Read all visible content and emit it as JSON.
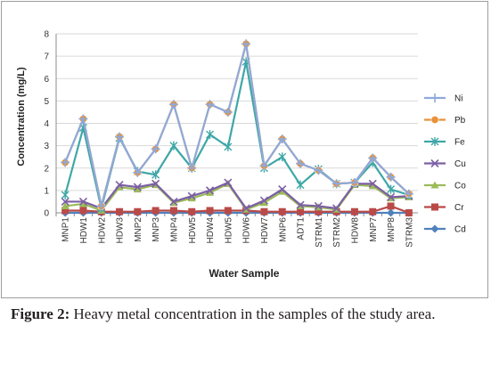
{
  "chart_data": {
    "type": "line",
    "xlabel": "Water Sample",
    "ylabel": "Concentration (mg/L)",
    "ylim": [
      0,
      8
    ],
    "yticks": [
      "0",
      "1",
      "2",
      "3",
      "4",
      "5",
      "6",
      "7",
      "8"
    ],
    "grid": true,
    "legend_position": "right",
    "categories": [
      "MNP1",
      "HDW1",
      "HDW2",
      "HDW3",
      "MNP2",
      "MNP3",
      "MNP4",
      "HDW5",
      "HDW4",
      "HDW5",
      "HDW6",
      "HDW7",
      "MNP6",
      "ADT1",
      "STRM1",
      "STRM2",
      "HDW8",
      "MNP7",
      "MNP8",
      "STRM3"
    ],
    "series": [
      {
        "name": "Ni",
        "color": "#8EA9DB",
        "marker": "plus",
        "values": [
          2.25,
          4.2,
          0.3,
          3.4,
          1.8,
          2.85,
          4.85,
          2.0,
          4.85,
          4.5,
          7.55,
          2.1,
          3.3,
          2.2,
          1.9,
          1.3,
          1.35,
          2.45,
          1.6,
          0.85
        ]
      },
      {
        "name": "Pb",
        "color": "#E8923A",
        "marker": "circle",
        "values": [
          2.25,
          4.2,
          0.3,
          3.4,
          1.8,
          2.85,
          4.85,
          2.0,
          4.85,
          4.5,
          7.55,
          2.1,
          3.3,
          2.2,
          1.9,
          1.3,
          1.35,
          2.45,
          1.6,
          0.85
        ]
      },
      {
        "name": "Fe",
        "color": "#3FA7A7",
        "marker": "star",
        "values": [
          0.8,
          3.8,
          0.2,
          3.35,
          1.85,
          1.7,
          3.0,
          2.0,
          3.5,
          2.95,
          6.75,
          2.0,
          2.5,
          1.25,
          1.95,
          1.3,
          1.35,
          2.25,
          1.05,
          0.8
        ]
      },
      {
        "name": "Cu",
        "color": "#7C5FA4",
        "marker": "x",
        "values": [
          0.5,
          0.5,
          0.2,
          1.25,
          1.15,
          1.3,
          0.5,
          0.75,
          1.0,
          1.35,
          0.2,
          0.55,
          1.05,
          0.35,
          0.3,
          0.2,
          1.3,
          1.3,
          0.7,
          0.75
        ]
      },
      {
        "name": "Co",
        "color": "#9BBB59",
        "marker": "triangle",
        "values": [
          0.3,
          0.4,
          0.1,
          1.15,
          1.05,
          1.25,
          0.45,
          0.65,
          0.9,
          1.3,
          0.15,
          0.45,
          0.95,
          0.3,
          0.25,
          0.15,
          1.25,
          1.2,
          0.65,
          0.7
        ]
      },
      {
        "name": "Cr",
        "color": "#B94A48",
        "marker": "square",
        "values": [
          0.1,
          0.1,
          0.05,
          0.05,
          0.05,
          0.1,
          0.1,
          0.05,
          0.1,
          0.1,
          0.1,
          0.05,
          0.05,
          0.05,
          0.05,
          0.05,
          0.05,
          0.05,
          0.3,
          0.0
        ]
      },
      {
        "name": "Cd",
        "color": "#4F81BD",
        "marker": "diamond",
        "values": [
          0.0,
          0.0,
          0.0,
          0.0,
          0.0,
          0.0,
          0.0,
          0.0,
          0.0,
          0.0,
          0.0,
          0.0,
          0.0,
          0.0,
          0.0,
          0.0,
          0.0,
          0.0,
          0.0,
          0.0
        ]
      }
    ]
  },
  "caption": {
    "label": "Figure 2:",
    "text": " Heavy metal concentration in the samples of the study area."
  }
}
